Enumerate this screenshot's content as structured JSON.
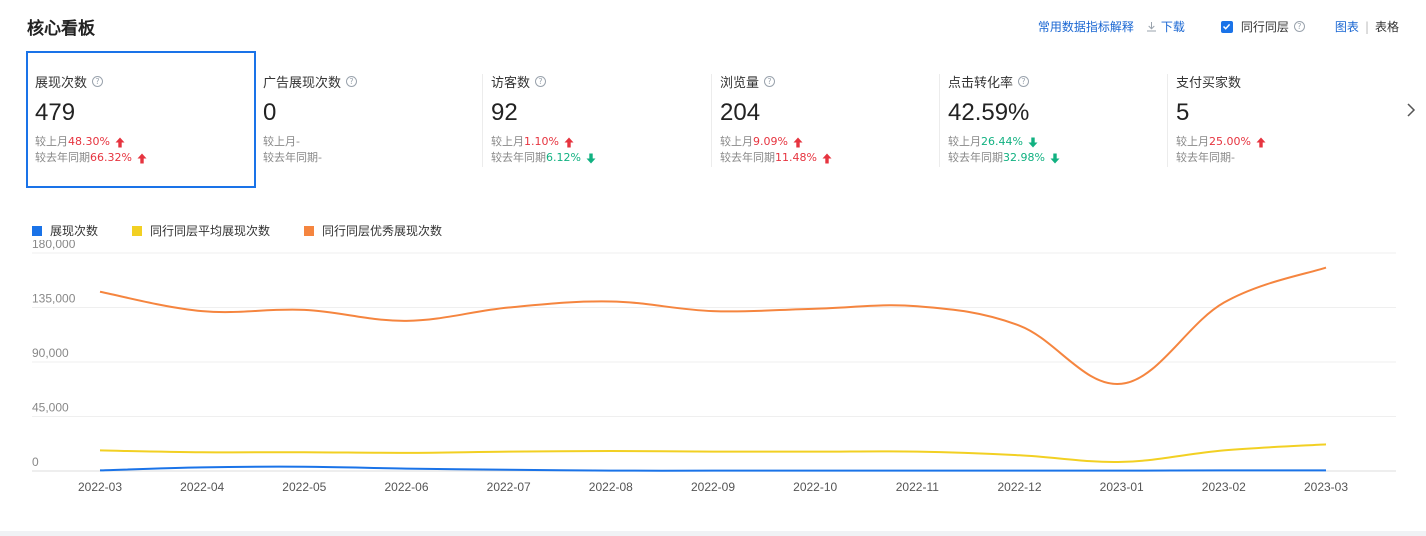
{
  "header": {
    "title": "核心看板",
    "metric_help": "常用数据指标解释",
    "download": "下载",
    "peer_checkbox": {
      "label": "同行同层",
      "checked": true
    },
    "views": [
      {
        "label": "图表",
        "active": true
      },
      {
        "label": "表格",
        "active": false
      }
    ]
  },
  "metrics": [
    {
      "label": "展现次数",
      "help": true,
      "value": "479",
      "mom_label": "较上月",
      "mom_value": "48.30%",
      "mom_dir": "up",
      "yoy_label": "较去年同期",
      "yoy_value": "66.32%",
      "yoy_dir": "up",
      "selected": true
    },
    {
      "label": "广告展现次数",
      "help": true,
      "value": "0",
      "mom_label": "较上月",
      "mom_value": "-",
      "mom_dir": "none",
      "yoy_label": "较去年同期",
      "yoy_value": "-",
      "yoy_dir": "none",
      "selected": false
    },
    {
      "label": "访客数",
      "help": true,
      "value": "92",
      "mom_label": "较上月",
      "mom_value": "1.10%",
      "mom_dir": "up",
      "yoy_label": "较去年同期",
      "yoy_value": "6.12%",
      "yoy_dir": "down",
      "selected": false
    },
    {
      "label": "浏览量",
      "help": true,
      "value": "204",
      "mom_label": "较上月",
      "mom_value": "9.09%",
      "mom_dir": "up",
      "yoy_label": "较去年同期",
      "yoy_value": "11.48%",
      "yoy_dir": "up",
      "selected": false
    },
    {
      "label": "点击转化率",
      "help": true,
      "value": "42.59%",
      "mom_label": "较上月",
      "mom_value": "26.44%",
      "mom_dir": "down",
      "yoy_label": "较去年同期",
      "yoy_value": "32.98%",
      "yoy_dir": "down",
      "selected": false
    },
    {
      "label": "支付买家数",
      "help": false,
      "value": "5",
      "mom_label": "较上月",
      "mom_value": "25.00%",
      "mom_dir": "up",
      "yoy_label": "较去年同期",
      "yoy_value": "-",
      "yoy_dir": "none",
      "selected": false
    }
  ],
  "colors": {
    "up": "#e6343f",
    "down": "#11b181",
    "accent": "#1a73e8"
  },
  "icons": {
    "help": "question-circle-icon",
    "download": "download-icon",
    "next": "chevron-right-icon",
    "up": "arrow-up-icon",
    "down": "arrow-down-icon"
  },
  "chart_data": {
    "type": "line",
    "x": [
      "2022-03",
      "2022-04",
      "2022-05",
      "2022-06",
      "2022-07",
      "2022-08",
      "2022-09",
      "2022-10",
      "2022-11",
      "2022-12",
      "2023-01",
      "2023-02",
      "2023-03"
    ],
    "ylim": [
      0,
      180000
    ],
    "yticks": [
      0,
      45000,
      90000,
      135000,
      180000
    ],
    "ytick_labels": [
      "0",
      "45,000",
      "90,000",
      "135,000",
      "180,000"
    ],
    "grid": true,
    "legend_position": "top-left",
    "series": [
      {
        "name": "展现次数",
        "color": "#1a73e8",
        "values": [
          500,
          3000,
          3500,
          2000,
          1000,
          300,
          300,
          300,
          300,
          300,
          300,
          500,
          500
        ]
      },
      {
        "name": "同行同层平均展现次数",
        "color": "#f2d023",
        "values": [
          17000,
          15500,
          15500,
          15000,
          16000,
          16500,
          16000,
          16000,
          16000,
          13000,
          7500,
          17000,
          22000
        ]
      },
      {
        "name": "同行同层优秀展现次数",
        "color": "#f5853f",
        "values": [
          148000,
          132000,
          133000,
          124000,
          135000,
          140000,
          132000,
          134000,
          136000,
          120000,
          72000,
          139000,
          168000
        ]
      }
    ]
  }
}
